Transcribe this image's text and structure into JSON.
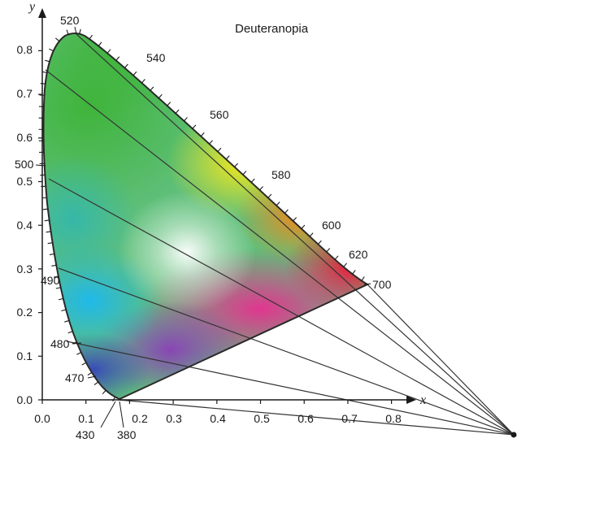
{
  "title": "Deuteranopia",
  "axes": {
    "x_label": "x",
    "y_label": "y",
    "x_ticks": [
      "0.0",
      "0.1",
      "0.2",
      "0.3",
      "0.4",
      "0.5",
      "0.6",
      "0.7",
      "0.8"
    ],
    "y_ticks": [
      "0.0",
      "0.1",
      "0.2",
      "0.3",
      "0.4",
      "0.5",
      "0.6",
      "0.7",
      "0.8"
    ]
  },
  "wavelength_labels": {
    "w520": "520",
    "w540": "540",
    "w560": "560",
    "w580": "580",
    "w600": "600",
    "w620": "620",
    "w700": "700",
    "w500": "500",
    "w490": "490",
    "w480": "480",
    "w470": "470",
    "w430": "430",
    "w380": "380"
  },
  "copunctal_point": [
    1.08,
    -0.08
  ]
}
